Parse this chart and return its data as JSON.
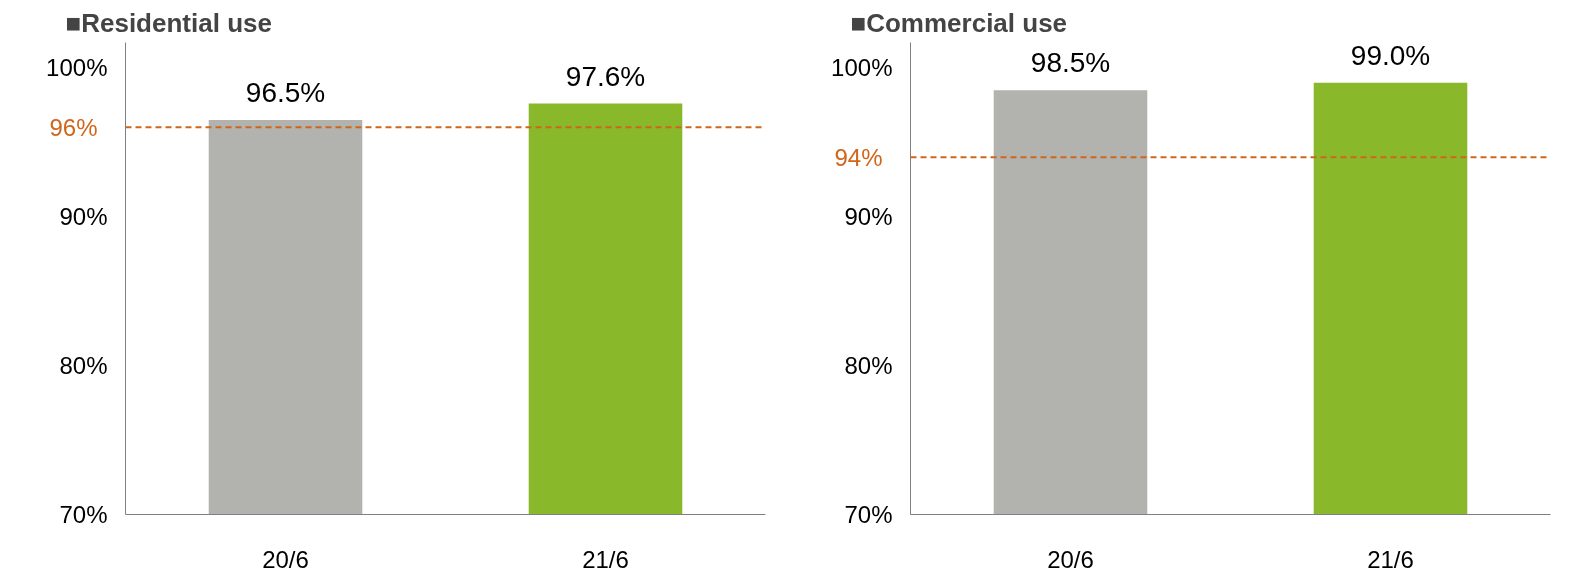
{
  "chart_data": [
    {
      "type": "bar",
      "title": "■Residential use",
      "categories": [
        "20/6",
        "21/6"
      ],
      "values": [
        96.5,
        97.6
      ],
      "colors": [
        "#b2b3ae",
        "#8ab82b"
      ],
      "value_labels": [
        "96.5%",
        "97.6%"
      ],
      "ylim": [
        70,
        101.7
      ],
      "yticks": [
        {
          "value": 70,
          "label": "70%"
        },
        {
          "value": 80,
          "label": "80%"
        },
        {
          "value": 90,
          "label": "90%"
        },
        {
          "value": 100,
          "label": "100%"
        }
      ],
      "grid": false,
      "ref_lines": [
        {
          "axis": "y",
          "value": 96,
          "label": "96%",
          "color": "#d0661c",
          "line_style": "dashed"
        }
      ]
    },
    {
      "type": "bar",
      "title": "■Commercial use",
      "categories": [
        "20/6",
        "21/6"
      ],
      "values": [
        98.5,
        99.0
      ],
      "colors": [
        "#b2b3ae",
        "#8ab82b"
      ],
      "value_labels": [
        "98.5%",
        "99.0%"
      ],
      "ylim": [
        70,
        101.7
      ],
      "yticks": [
        {
          "value": 70,
          "label": "70%"
        },
        {
          "value": 80,
          "label": "80%"
        },
        {
          "value": 90,
          "label": "90%"
        },
        {
          "value": 100,
          "label": "100%"
        }
      ],
      "grid": false,
      "ref_lines": [
        {
          "axis": "y",
          "value": 94,
          "label": "94%",
          "color": "#d0661c",
          "line_style": "dashed"
        }
      ]
    }
  ]
}
